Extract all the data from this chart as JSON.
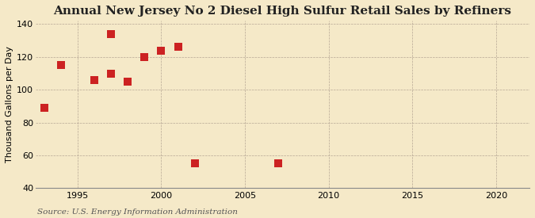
{
  "title": "Annual New Jersey No 2 Diesel High Sulfur Retail Sales by Refiners",
  "ylabel": "Thousand Gallons per Day",
  "source": "Source: U.S. Energy Information Administration",
  "background_color": "#f5e9c8",
  "plot_bg_color": "#f5e9c8",
  "x_data": [
    1993,
    1994,
    1996,
    1997,
    1997,
    1998,
    1999,
    2000,
    2001,
    2002,
    2007
  ],
  "y_data": [
    89,
    115,
    106,
    134,
    110,
    105,
    120,
    124,
    126,
    55,
    55
  ],
  "point_color": "#cc2222",
  "xlim": [
    1992.5,
    2022
  ],
  "ylim": [
    40,
    142
  ],
  "xticks": [
    1995,
    2000,
    2005,
    2010,
    2015,
    2020
  ],
  "yticks": [
    40,
    60,
    80,
    100,
    120,
    140
  ],
  "marker": "s",
  "markersize": 4,
  "title_fontsize": 11,
  "ylabel_fontsize": 8,
  "tick_fontsize": 8,
  "source_fontsize": 7.5
}
